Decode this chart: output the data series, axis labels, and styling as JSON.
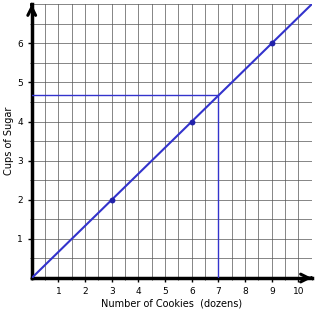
{
  "xlabel": "Number of Cookies  (dozens)",
  "ylabel": "Cups of Sugar",
  "xlim": [
    0,
    10.5
  ],
  "ylim": [
    0,
    7.0
  ],
  "xticks": [
    1,
    2,
    3,
    4,
    5,
    6,
    7,
    8,
    9,
    10
  ],
  "yticks": [
    1,
    2,
    3,
    4,
    5,
    6
  ],
  "points_x": [
    3,
    6,
    9
  ],
  "points_y": [
    2,
    4,
    6
  ],
  "line_color": "#3333cc",
  "point_color": "#2222aa",
  "grid_color": "#555555",
  "hline_y": 4.6667,
  "hline_x_end": 7.0,
  "vline_x": 7.0,
  "vline_y_end": 4.6667,
  "slope": 0.6667,
  "figsize": [
    3.16,
    3.13
  ],
  "dpi": 100
}
